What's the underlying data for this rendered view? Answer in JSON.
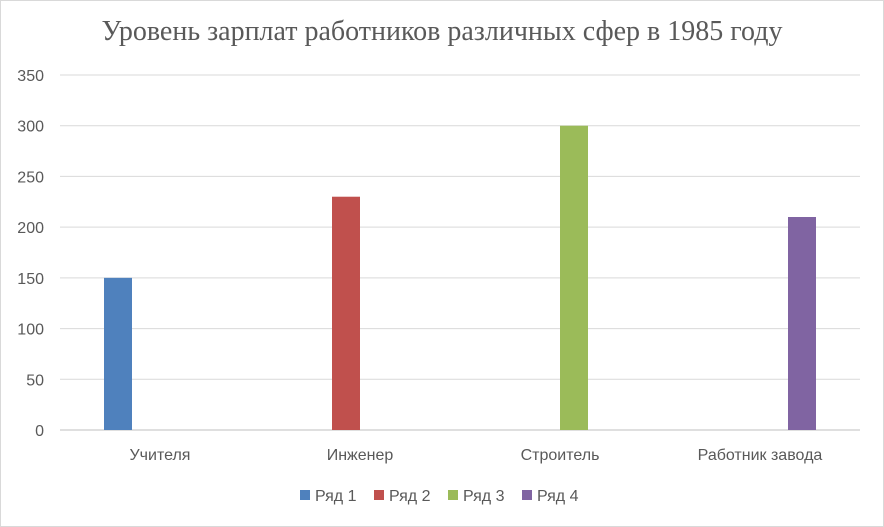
{
  "chart_data": {
    "type": "bar",
    "title": "Уровень зарплат работников различных сфер в 1985 году",
    "xlabel": "",
    "ylabel": "",
    "categories": [
      "Учителя",
      "Инженер",
      "Строитель",
      "Работник завода"
    ],
    "series": [
      {
        "name": "Ряд 1",
        "color": "#4f81bd",
        "values": [
          150,
          null,
          null,
          null
        ]
      },
      {
        "name": "Ряд 2",
        "color": "#c0504d",
        "values": [
          null,
          230,
          null,
          null
        ]
      },
      {
        "name": "Ряд 3",
        "color": "#9bbb59",
        "values": [
          null,
          null,
          300,
          null
        ]
      },
      {
        "name": "Ряд 4",
        "color": "#8064a2",
        "values": [
          null,
          null,
          null,
          210
        ]
      }
    ],
    "ylim": [
      0,
      350
    ],
    "yticks": [
      0,
      50,
      100,
      150,
      200,
      250,
      300,
      350
    ],
    "grid": true,
    "legend_position": "bottom"
  }
}
